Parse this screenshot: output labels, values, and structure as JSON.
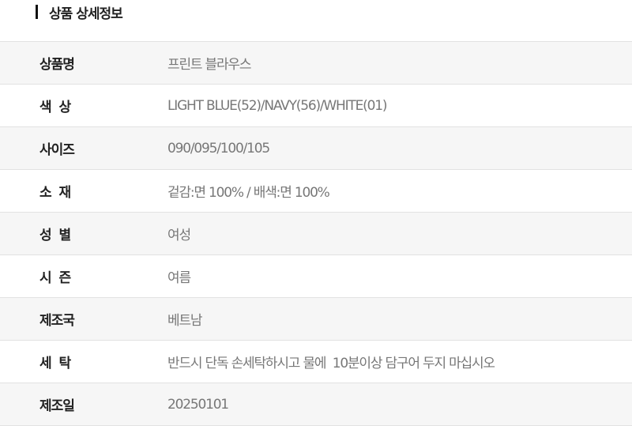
{
  "section_title": "상품 상세정보",
  "rows": [
    {
      "label": "상품명",
      "value": "프린트 블라우스"
    },
    {
      "label": "색  상",
      "value": "LIGHT BLUE(52)/NAVY(56)/WHITE(01)"
    },
    {
      "label": "사이즈",
      "value": "090/095/100/105"
    },
    {
      "label": "소  재",
      "value": "겉감:면 100% / 배색:면 100%"
    },
    {
      "label": "성  별",
      "value": "여성"
    },
    {
      "label": "시  즌",
      "value": "여름"
    },
    {
      "label": "제조국",
      "value": "베트남"
    },
    {
      "label": "세  탁",
      "value": "반드시 단독 손세탁하시고 물에  10분이상 담구어 두지 마십시오"
    },
    {
      "label": "제조일",
      "value": "20250101"
    }
  ]
}
